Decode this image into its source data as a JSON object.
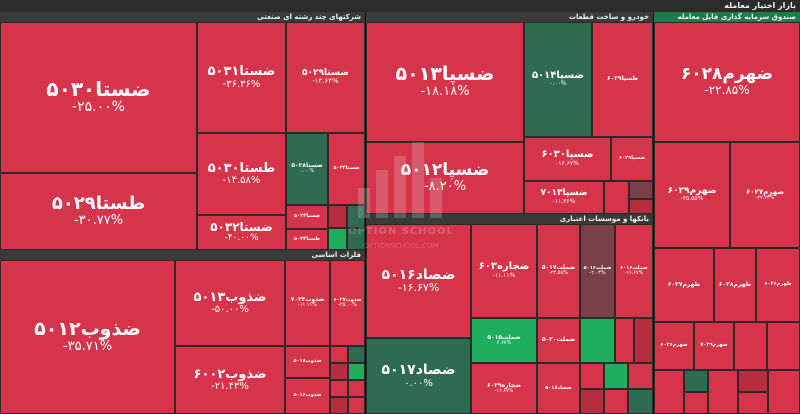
{
  "board_title": "بازار اختیار معامله",
  "colors": {
    "red": "#d6344a",
    "red_dark": "#b52d3e",
    "green_dark": "#2e6b50",
    "green": "#1fae5f",
    "gray": "#7a4048"
  },
  "sectors": [
    {
      "name": "شرکتهای چند رشته ای صنعتی",
      "id": "sector-conglomerate"
    },
    {
      "name": "خودرو و ساخت قطعات",
      "id": "sector-auto"
    },
    {
      "name": "صندوق سرمایه گذاری قابل معامله",
      "id": "sector-etf"
    },
    {
      "name": "بانکها و موسسات اعتباری",
      "id": "sector-banks"
    },
    {
      "name": "فلزات اساسی",
      "id": "sector-metals"
    }
  ],
  "tiles": [
    {
      "symbol": "ضستا۵۰۳۰",
      "change": "-۲۵.۰۰%",
      "color": "red"
    },
    {
      "symbol": "طستا۵۰۲۹",
      "change": "-۳۰.۷۷%",
      "color": "red"
    },
    {
      "symbol": "ضستا۵۰۳۱",
      "change": "-۳۶.۳۶%",
      "color": "red"
    },
    {
      "symbol": "ضستا۵۰۲۹",
      "change": "-۱۳.۶۴%",
      "color": "red"
    },
    {
      "symbol": "طستا۵۰۳۰",
      "change": "-۱۴.۵۸%",
      "color": "red"
    },
    {
      "symbol": "ضستا۵۰۲۸",
      "change": "۰.۰۰%",
      "color": "green_dark"
    },
    {
      "symbol": "ضستا۵۰۳۲",
      "change": "-۴۰.۰۰%",
      "color": "red"
    },
    {
      "symbol": "ضستا۵۰۳۳",
      "change": "",
      "color": "red"
    },
    {
      "symbol": "ضستا۵۰۲۴",
      "change": "",
      "color": "red"
    },
    {
      "symbol": "طستا۵۰۳۴",
      "change": "",
      "color": "red"
    },
    {
      "symbol": "ضسپا۵۰۱۳",
      "change": "-۱۸.۱۸%",
      "color": "red"
    },
    {
      "symbol": "ضسپا۵۰۱۴",
      "change": "۰.۰۰%",
      "color": "green_dark"
    },
    {
      "symbol": "ضسپا۵۰۱۲",
      "change": "-۸.۲۰%",
      "color": "red"
    },
    {
      "symbol": "ضسپا۶۰۳۰",
      "change": "-۱۶.۶۷%",
      "color": "red"
    },
    {
      "symbol": "ضسپا۷۰۱۳",
      "change": "-۱۱.۳۶%",
      "color": "red"
    },
    {
      "symbol": "طسپا۶۰۲۹",
      "change": "",
      "color": "red"
    },
    {
      "symbol": "ضسپا۶۰۲۹",
      "change": "",
      "color": "red"
    },
    {
      "symbol": "طسپا۵۰۲۹",
      "change": "",
      "color": "red"
    },
    {
      "symbol": "ضهرم۶۰۲۸",
      "change": "-۲۲.۸۵%",
      "color": "red"
    },
    {
      "symbol": "ضهرم۶۰۲۹",
      "change": "-۳۵.۵۵%",
      "color": "red"
    },
    {
      "symbol": "ضهرم۶۰۲۷",
      "change": "-۲۷.۳۳%",
      "color": "red"
    },
    {
      "symbol": "طهرم۶۰۲۷",
      "change": "",
      "color": "red"
    },
    {
      "symbol": "طهرم۶۰۲۸",
      "change": "",
      "color": "red"
    },
    {
      "symbol": "طهرم۶۰۲۶",
      "change": "",
      "color": "red"
    },
    {
      "symbol": "ضهرم۶۰۲۶",
      "change": "",
      "color": "red"
    },
    {
      "symbol": "ضهرم۷۰۲۹",
      "change": "",
      "color": "red"
    },
    {
      "symbol": "ضجاره۶۰۳",
      "change": "-۱۱.۱۱%",
      "color": "red"
    },
    {
      "symbol": "ضصاد۵۰۱۶",
      "change": "-۱۶.۶۷%",
      "color": "red"
    },
    {
      "symbol": "ضملت۵۰۱۷",
      "change": "-۲۳.۵۸%",
      "color": "red"
    },
    {
      "symbol": "ضملت۵۰۱۶",
      "change": "-۲.۰۳%",
      "color": "gray"
    },
    {
      "symbol": "ضملت۶۰۱۶",
      "change": "-۱۶.۶۷%",
      "color": "red"
    },
    {
      "symbol": "ضصاد۵۰۱۷",
      "change": "۰.۰۰%",
      "color": "green_dark"
    },
    {
      "symbol": "ضملت۵۰۱۵",
      "change": "۶.۶۷%",
      "color": "green"
    },
    {
      "symbol": "ضملت۵۰۲۰",
      "change": "",
      "color": "red"
    },
    {
      "symbol": "ضجاره۶۰۲۹",
      "change": "-۱۶.۶۷%",
      "color": "red"
    },
    {
      "symbol": "ضصاد۵۰۱۸",
      "change": "",
      "color": "red"
    },
    {
      "symbol": "ضذوب۵۰۱۲",
      "change": "-۳۵.۷۱%",
      "color": "red"
    },
    {
      "symbol": "ضذوب۵۰۱۳",
      "change": "-۵۰.۰۰%",
      "color": "red"
    },
    {
      "symbol": "ضذوب۶۰۰۲",
      "change": "-۲۱.۴۳%",
      "color": "red"
    },
    {
      "symbol": "ضذوب۷۰۲۴",
      "change": "-۱۱.۱۱%",
      "color": "red"
    },
    {
      "symbol": "ضذوب۶۰۲۷",
      "change": "-۲۵.۰۰%",
      "color": "red"
    },
    {
      "symbol": "ضذوب۵۰۱۸",
      "change": "",
      "color": "red"
    },
    {
      "symbol": "ضذوب۵۰۱۶",
      "change": "",
      "color": "red"
    }
  ],
  "watermark": {
    "line1": "OPTION SCHOOL",
    "line2": "OPTIONSCHOOL.COM"
  }
}
